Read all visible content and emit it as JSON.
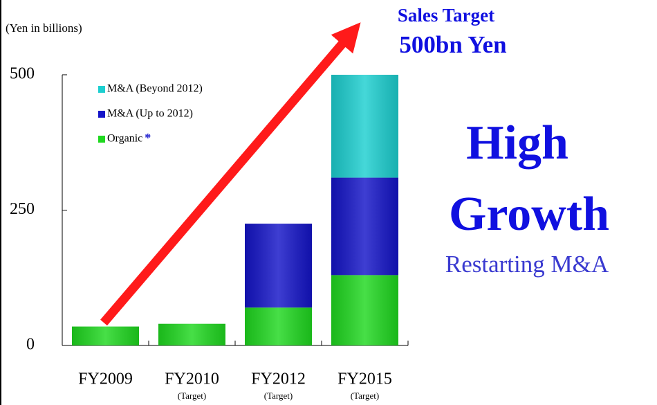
{
  "chart_data": {
    "type": "stacked_bar",
    "axis_label": "(Yen in billions)",
    "annotations": {
      "target_line1": "Sales Target",
      "target_line2": "500bn Yen",
      "headline1": "High",
      "headline2": "Growth",
      "subline": "Restarting M&A"
    },
    "categories": [
      "FY2009",
      "FY2010",
      "FY2012",
      "FY2015"
    ],
    "category_notes": [
      null,
      "(Target)",
      "(Target)",
      "(Target)"
    ],
    "series": [
      {
        "name": "Organic",
        "note": "*",
        "color": "#1fd81f",
        "values": [
          35,
          40,
          70,
          130
        ]
      },
      {
        "name": "M&A (Up to 2012)",
        "color": "#1414c8",
        "values": [
          null,
          null,
          155,
          180
        ]
      },
      {
        "name": "M&A (Beyond 2012)",
        "color": "#1ccfd0",
        "values": [
          null,
          null,
          null,
          190
        ]
      }
    ],
    "ylim": [
      0,
      500
    ],
    "yticks": [
      0,
      250,
      500
    ],
    "grid": false
  }
}
